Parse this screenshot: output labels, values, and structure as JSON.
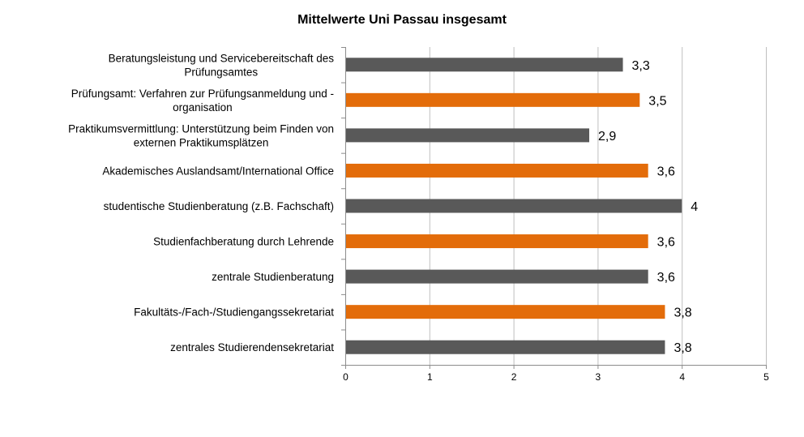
{
  "chart_data": {
    "type": "bar",
    "orientation": "horizontal",
    "title": "Mittelwerte Uni Passau insgesamt",
    "categories": [
      [
        "Beratungsleistung und Servicebereitschaft des",
        "Prüfungsamtes"
      ],
      [
        "Prüfungsamt: Verfahren zur Prüfungsanmeldung und -",
        "organisation"
      ],
      [
        "Praktikumsvermittlung: Unterstützung beim Finden von",
        "externen Praktikumsplätzen"
      ],
      [
        "Akademisches Auslandsamt/International Office"
      ],
      [
        "studentische Studienberatung (z.B. Fachschaft)"
      ],
      [
        "Studienfachberatung durch Lehrende"
      ],
      [
        "zentrale Studienberatung"
      ],
      [
        "Fakultäts-/Fach-/Studiengangssekretariat"
      ],
      [
        "zentrales Studierendensekretariat"
      ]
    ],
    "values": [
      3.3,
      3.5,
      2.9,
      3.6,
      4,
      3.6,
      3.6,
      3.8,
      3.8
    ],
    "value_labels": [
      "3,3",
      "3,5",
      "2,9",
      "3,6",
      "4",
      "3,6",
      "3,6",
      "3,8",
      "3,8"
    ],
    "bar_colors": [
      "#595959",
      "#e36c0a",
      "#595959",
      "#e36c0a",
      "#595959",
      "#e36c0a",
      "#595959",
      "#e36c0a",
      "#595959"
    ],
    "xlim": [
      0,
      5
    ],
    "xticks": [
      "0",
      "1",
      "2",
      "3",
      "4",
      "5"
    ],
    "grid": true,
    "legend": "none",
    "xlabel": "",
    "ylabel": ""
  }
}
